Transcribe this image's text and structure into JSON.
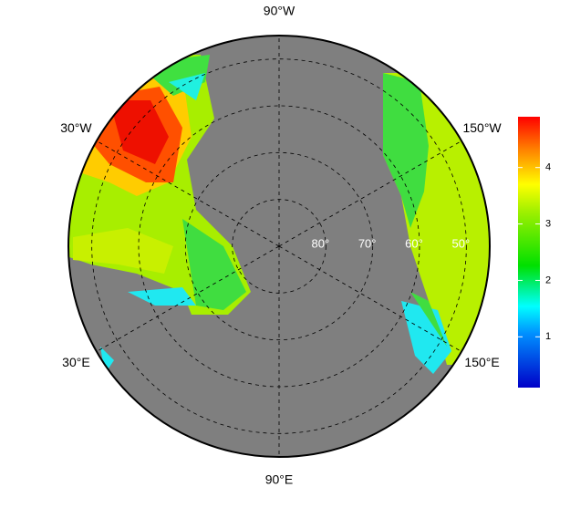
{
  "chart_data": {
    "type": "polar-map",
    "meridians": [
      {
        "value": -90,
        "label": "90°W"
      },
      {
        "value": -30,
        "label": "30°W"
      },
      {
        "value": -150,
        "label": "150°W"
      },
      {
        "value": 30,
        "label": "30°E"
      },
      {
        "value": 150,
        "label": "150°E"
      },
      {
        "value": 90,
        "label": "90°E"
      }
    ],
    "parallels": [
      {
        "value": 80,
        "label": "80°"
      },
      {
        "value": 70,
        "label": "70°"
      },
      {
        "value": 60,
        "label": "60°"
      },
      {
        "value": 50,
        "label": "50°"
      }
    ],
    "outer_lat": 45,
    "colorbar": {
      "lim": [
        0.1,
        4.9
      ],
      "ticks": [
        1,
        2,
        3,
        4
      ]
    }
  }
}
